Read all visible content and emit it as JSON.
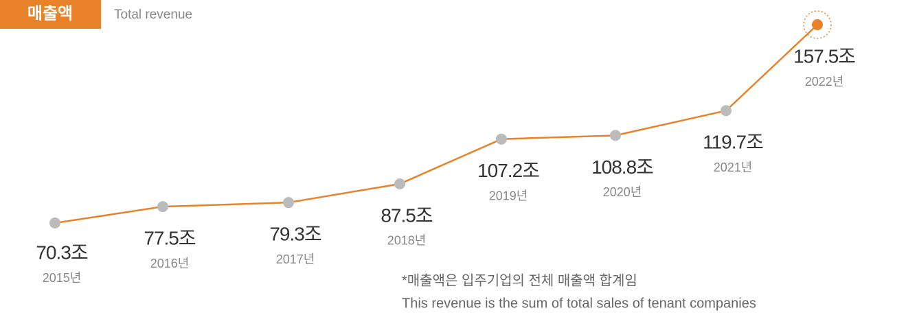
{
  "chart_data": {
    "type": "line",
    "title": "매출액",
    "subtitle": "Total revenue",
    "categories": [
      "2015년",
      "2016년",
      "2017년",
      "2018년",
      "2019년",
      "2020년",
      "2021년",
      "2022년"
    ],
    "values": [
      70.3,
      77.5,
      79.3,
      87.5,
      107.2,
      108.8,
      119.7,
      157.5
    ],
    "value_labels": [
      "70.3조",
      "77.5조",
      "79.3조",
      "87.5조",
      "107.2조",
      "108.8조",
      "119.7조",
      "157.5조"
    ],
    "color": "#e8822a",
    "point_color": "#bbbbbb",
    "notes": [
      "*매출액은 입주기업의 전체 매출액 합계임",
      "This revenue is the sum of total sales of tenant companies"
    ]
  }
}
